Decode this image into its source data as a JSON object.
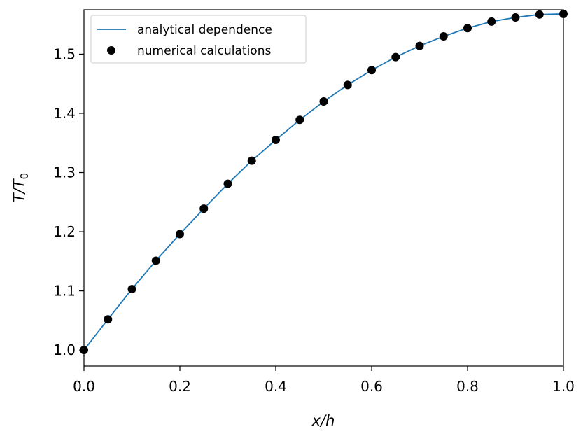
{
  "chart_data": {
    "type": "line",
    "xlabel": "x/h",
    "ylabel": {
      "base": "T/T",
      "subscript": "0"
    },
    "xlim": [
      0.0,
      1.0
    ],
    "ylim": [
      0.973,
      1.575
    ],
    "x_ticks": [
      0.0,
      0.2,
      0.4,
      0.6,
      0.8,
      1.0
    ],
    "x_tick_labels": [
      "0.0",
      "0.2",
      "0.4",
      "0.6",
      "0.8",
      "1.0"
    ],
    "y_ticks": [
      1.0,
      1.1,
      1.2,
      1.3,
      1.4,
      1.5
    ],
    "y_tick_labels": [
      "1.0",
      "1.1",
      "1.2",
      "1.3",
      "1.4",
      "1.5"
    ],
    "grid": false,
    "legend_position": "top-left",
    "series": [
      {
        "name": "analytical dependence",
        "kind": "line",
        "color": "#1f77b4",
        "x": [
          0.0,
          0.05,
          0.1,
          0.15,
          0.2,
          0.25,
          0.3,
          0.35,
          0.4,
          0.45,
          0.5,
          0.55,
          0.6,
          0.65,
          0.7,
          0.75,
          0.8,
          0.85,
          0.9,
          0.95,
          1.0
        ],
        "y": [
          1.0,
          1.052,
          1.103,
          1.151,
          1.196,
          1.239,
          1.281,
          1.32,
          1.355,
          1.389,
          1.42,
          1.448,
          1.473,
          1.495,
          1.514,
          1.53,
          1.544,
          1.555,
          1.562,
          1.567,
          1.568
        ]
      },
      {
        "name": "numerical calculations",
        "kind": "scatter",
        "color": "#000000",
        "x": [
          0.0,
          0.05,
          0.1,
          0.15,
          0.2,
          0.25,
          0.3,
          0.35,
          0.4,
          0.45,
          0.5,
          0.55,
          0.6,
          0.65,
          0.7,
          0.75,
          0.8,
          0.85,
          0.9,
          0.95,
          1.0
        ],
        "y": [
          1.0,
          1.052,
          1.103,
          1.151,
          1.196,
          1.239,
          1.281,
          1.32,
          1.355,
          1.389,
          1.42,
          1.448,
          1.473,
          1.495,
          1.514,
          1.53,
          1.544,
          1.555,
          1.562,
          1.567,
          1.568
        ]
      }
    ]
  }
}
